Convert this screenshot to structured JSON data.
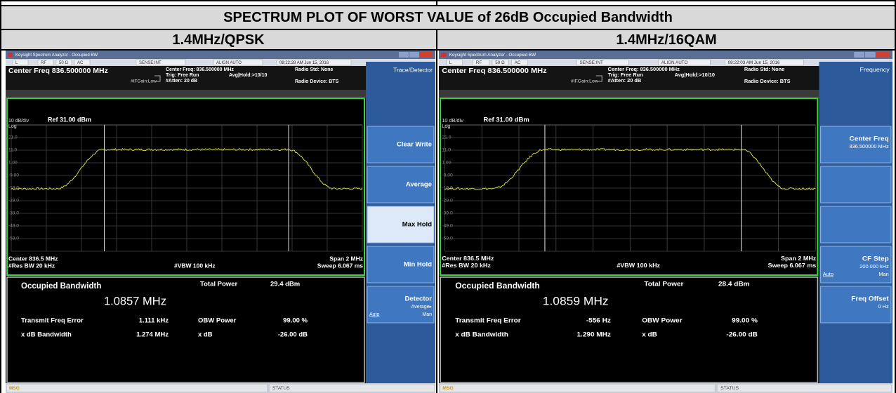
{
  "table": {
    "title": "SPECTRUM PLOT OF WORST VALUE of 26dB Occupied Bandwidth",
    "columns": [
      "1.4MHz/QPSK",
      "1.4MHz/16QAM"
    ]
  },
  "panels": [
    {
      "window_title": "Keysight Spectrum Analyzer - Occupied BW",
      "status_bar": [
        "L",
        "RF",
        "50 Ω",
        "AC",
        "SENSE:INT",
        "ALIGN AUTO"
      ],
      "timestamp": "08:22:28 AM Jun 15, 2016",
      "center_freq": "Center Freq 836.500000 MHz",
      "settings": {
        "center": "Center Freq: 836.500000 MHz",
        "trig": "Trig: Free Run",
        "avg": "Avg|Hold:>10/10",
        "gain": "#IFGain:Low",
        "atten": "#Atten: 20 dB",
        "radio_std": "Radio Std: None",
        "radio_device": "Radio Device: BTS"
      },
      "plot": {
        "scale": "10 dB/div",
        "ref": "Ref 31.00 dBm",
        "log": "Log",
        "y_labels": [
          "21.0",
          "11.0",
          "1.00",
          "-9.00",
          "-19.0",
          "-29.0",
          "-39.0",
          "-49.0",
          "-59.0"
        ],
        "center": "Center 836.5 MHz",
        "res_bw": "#Res BW 20 kHz",
        "vbw": "#VBW 100 kHz",
        "span": "Span 2 MHz",
        "sweep": "Sweep 6.067 ms"
      },
      "results": {
        "title": "Occupied Bandwidth",
        "bandwidth": "1.0857 MHz",
        "total_power_label": "Total Power",
        "total_power": "29.4 dBm",
        "rows": [
          [
            "Transmit Freq Error",
            "1.111 kHz",
            "OBW Power",
            "99.00 %"
          ],
          [
            "x dB Bandwidth",
            "1.274 MHz",
            "x dB",
            "-26.00 dB"
          ]
        ]
      },
      "softkeys": {
        "title": "Trace/Detector",
        "keys": [
          {
            "label": "Clear Write"
          },
          {
            "label": "Average"
          },
          {
            "label": "Max Hold",
            "active": true
          },
          {
            "label": "Min Hold"
          },
          {
            "label": "Detector",
            "sub": "Average▸",
            "left": "Auto",
            "right": "Man"
          }
        ]
      },
      "message": "MSG",
      "status": "STATUS"
    },
    {
      "window_title": "Keysight Spectrum Analyzer - Occupied BW",
      "status_bar": [
        "L",
        "RF",
        "50 Ω",
        "AC",
        "SENSE:INT",
        "ALIGN AUTO"
      ],
      "timestamp": "08:22:03 AM Jun 15, 2016",
      "center_freq": "Center Freq 836.500000 MHz",
      "settings": {
        "center": "Center Freq: 836.500000 MHz",
        "trig": "Trig: Free Run",
        "avg": "Avg|Hold:>10/10",
        "gain": "#IFGain:Low",
        "atten": "#Atten: 20 dB",
        "radio_std": "Radio Std: None",
        "radio_device": "Radio Device: BTS"
      },
      "plot": {
        "scale": "10 dB/div",
        "ref": "Ref 31.00 dBm",
        "log": "Log",
        "y_labels": [
          "21.0",
          "11.0",
          "1.00",
          "-9.00",
          "-19.0",
          "-29.0",
          "-39.0",
          "-49.0",
          "-59.0"
        ],
        "center": "Center 836.5 MHz",
        "res_bw": "#Res BW 20 kHz",
        "vbw": "#VBW 100 kHz",
        "span": "Span 2 MHz",
        "sweep": "Sweep 6.067 ms"
      },
      "results": {
        "title": "Occupied Bandwidth",
        "bandwidth": "1.0859 MHz",
        "total_power_label": "Total Power",
        "total_power": "28.4 dBm",
        "rows": [
          [
            "Transmit Freq Error",
            "-556 Hz",
            "OBW Power",
            "99.00 %"
          ],
          [
            "x dB Bandwidth",
            "1.290 MHz",
            "x dB",
            "-26.00 dB"
          ]
        ]
      },
      "softkeys": {
        "title": "Frequency",
        "keys": [
          {
            "label": "Center Freq",
            "sub": "836.500000 MHz"
          },
          null,
          null,
          {
            "label": "CF Step",
            "sub": "200.000 kHz",
            "left": "Auto",
            "right": "Man"
          },
          {
            "label": "Freq Offset",
            "sub": "0 Hz"
          }
        ]
      },
      "message": "MSG",
      "status": "STATUS"
    }
  ]
}
